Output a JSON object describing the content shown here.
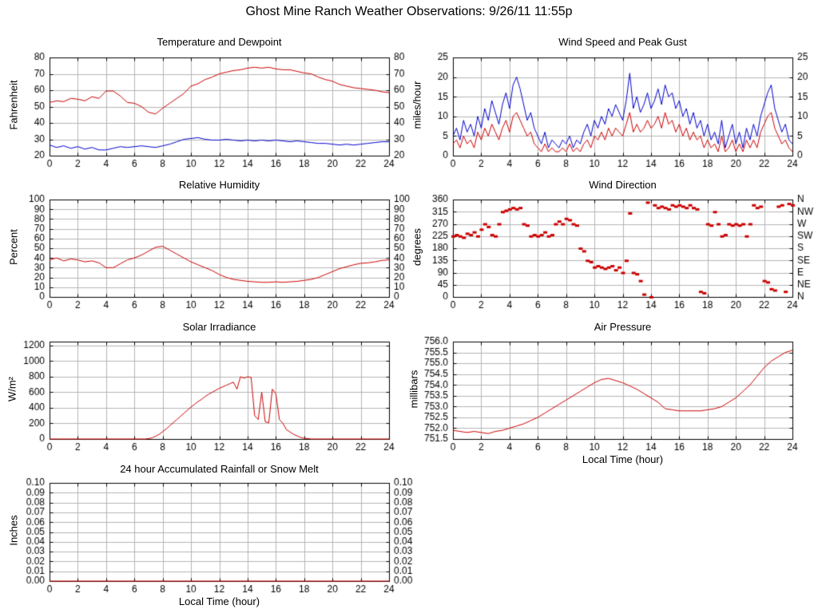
{
  "page": {
    "title": "Ghost Mine Ranch Weather Observations: 9/26/11 11:55p"
  },
  "chart_data": [
    {
      "id": "temperature-dewpoint",
      "type": "line",
      "title": "Temperature and Dewpoint",
      "ylabel": "Fahrenheit",
      "xlabel": "",
      "xlim": [
        0,
        24
      ],
      "ylim": [
        20,
        80
      ],
      "grid": true,
      "legend": "none",
      "xticks": [
        0,
        2,
        4,
        6,
        8,
        10,
        12,
        14,
        16,
        18,
        20,
        22,
        24
      ],
      "xtick_labels": [
        "0",
        "2",
        "4",
        "6",
        "8",
        "10",
        "12",
        "14",
        "16",
        "18",
        "20",
        "22",
        "24"
      ],
      "yticks": [
        20,
        30,
        40,
        50,
        60,
        70,
        80
      ],
      "ytick_labels_left": [
        "20",
        "30",
        "40",
        "50",
        "60",
        "70",
        "80"
      ],
      "ytick_labels_right": [
        "20",
        "30",
        "40",
        "50",
        "60",
        "70",
        "80"
      ],
      "series": [
        {
          "name": "Temperature",
          "color": "#cc0000",
          "x_start": 0,
          "x_step": 0.5,
          "values": [
            52.5,
            53.5,
            53,
            55,
            54.5,
            53.5,
            56,
            55,
            59.5,
            59.5,
            56.5,
            52.5,
            52,
            50,
            46.5,
            45.5,
            49,
            52,
            55,
            58,
            62.5,
            64,
            66.5,
            68,
            70,
            71,
            72,
            72.5,
            73.5,
            74,
            73.5,
            74,
            73,
            72.5,
            72.5,
            71.5,
            70.5,
            70,
            68,
            66.5,
            65.5,
            63.5,
            62.5,
            61.5,
            61,
            60.5,
            60,
            59,
            58.5
          ]
        },
        {
          "name": "Dewpoint",
          "color": "#0000cc",
          "x_start": 0,
          "x_step": 0.5,
          "values": [
            26.5,
            25,
            26,
            24.5,
            25.5,
            24,
            25,
            23.5,
            23.5,
            24.5,
            25.5,
            25,
            25.5,
            26,
            25.5,
            25,
            26,
            27,
            28.5,
            30,
            30.5,
            31,
            30,
            29.5,
            29.5,
            30,
            29.5,
            29,
            29.5,
            29,
            29.5,
            29,
            29.5,
            29,
            28.5,
            29,
            28.5,
            28,
            27.5,
            27.5,
            27,
            26.5,
            27,
            26.5,
            27,
            27.5,
            28,
            28.5,
            28.5
          ]
        }
      ]
    },
    {
      "id": "wind-speed-gust",
      "type": "line",
      "title": "Wind Speed and Peak Gust",
      "ylabel": "miles/hour",
      "xlabel": "",
      "xlim": [
        0,
        24
      ],
      "ylim": [
        0,
        25
      ],
      "grid": true,
      "legend": "none",
      "xticks": [
        0,
        2,
        4,
        6,
        8,
        10,
        12,
        14,
        16,
        18,
        20,
        22,
        24
      ],
      "xtick_labels": [
        "0",
        "2",
        "4",
        "6",
        "8",
        "10",
        "12",
        "14",
        "16",
        "18",
        "20",
        "22",
        "24"
      ],
      "yticks": [
        0,
        5,
        10,
        15,
        20,
        25
      ],
      "ytick_labels_left": [
        "0",
        "5",
        "10",
        "15",
        "20",
        "25"
      ],
      "ytick_labels_right": [
        "0",
        "5",
        "10",
        "15",
        "20",
        "25"
      ],
      "series": [
        {
          "name": "Peak Gust",
          "color": "#0000cc",
          "x_start": 0,
          "x_step": 0.25,
          "values": [
            5,
            7,
            4,
            9,
            6,
            8,
            5,
            10,
            7,
            12,
            9,
            14,
            11,
            8,
            13,
            16,
            12,
            18,
            20,
            17,
            13,
            9,
            11,
            7,
            5,
            3,
            6,
            2,
            4,
            3,
            2,
            4,
            3,
            5,
            2,
            4,
            3,
            6,
            8,
            5,
            9,
            7,
            10,
            8,
            12,
            10,
            13,
            11,
            9,
            14,
            21,
            12,
            15,
            11,
            13,
            16,
            12,
            14,
            17,
            13,
            18,
            15,
            16,
            12,
            14,
            10,
            12,
            8,
            11,
            7,
            9,
            5,
            8,
            4,
            6,
            3,
            9,
            2,
            5,
            8,
            3,
            6,
            2,
            7,
            4,
            8,
            5,
            10,
            13,
            16,
            18,
            12,
            9,
            6,
            8,
            4,
            3
          ]
        },
        {
          "name": "Wind Speed",
          "color": "#cc0000",
          "x_start": 0,
          "x_step": 0.25,
          "values": [
            3,
            4,
            2,
            5,
            3,
            4,
            2,
            6,
            4,
            7,
            5,
            8,
            6,
            4,
            7,
            9,
            6,
            10,
            11,
            9,
            7,
            5,
            6,
            3,
            2,
            1,
            3,
            1,
            2,
            1,
            1,
            2,
            1,
            3,
            1,
            2,
            1,
            3,
            4,
            2,
            5,
            4,
            6,
            4,
            7,
            5,
            7,
            6,
            5,
            8,
            11,
            6,
            8,
            6,
            7,
            9,
            7,
            8,
            10,
            7,
            11,
            8,
            9,
            6,
            8,
            5,
            7,
            4,
            6,
            4,
            5,
            2,
            4,
            2,
            3,
            1,
            5,
            1,
            2,
            4,
            1,
            3,
            1,
            4,
            2,
            4,
            2,
            6,
            8,
            10,
            11,
            7,
            5,
            3,
            4,
            2,
            1
          ]
        }
      ]
    },
    {
      "id": "relative-humidity",
      "type": "line",
      "title": "Relative Humidity",
      "ylabel": "Percent",
      "xlabel": "",
      "xlim": [
        0,
        24
      ],
      "ylim": [
        0,
        100
      ],
      "grid": true,
      "legend": "none",
      "xticks": [
        0,
        2,
        4,
        6,
        8,
        10,
        12,
        14,
        16,
        18,
        20,
        22,
        24
      ],
      "xtick_labels": [
        "0",
        "2",
        "4",
        "6",
        "8",
        "10",
        "12",
        "14",
        "16",
        "18",
        "20",
        "22",
        "24"
      ],
      "yticks": [
        0,
        10,
        20,
        30,
        40,
        50,
        60,
        70,
        80,
        90,
        100
      ],
      "ytick_labels_left": [
        "0",
        "10",
        "20",
        "30",
        "40",
        "50",
        "60",
        "70",
        "80",
        "90",
        "100"
      ],
      "ytick_labels_right": [
        "0",
        "10",
        "20",
        "30",
        "40",
        "50",
        "60",
        "70",
        "80",
        "90",
        "100"
      ],
      "series": [
        {
          "name": "Relative Humidity",
          "color": "#cc0000",
          "x_start": 0,
          "x_step": 0.5,
          "values": [
            38,
            40,
            37,
            39,
            38,
            36,
            37,
            35,
            30,
            30,
            34,
            38,
            40,
            43,
            47,
            51,
            52,
            48,
            44,
            40,
            36,
            33,
            30,
            27,
            23,
            20,
            18,
            17,
            16,
            15.5,
            15,
            15,
            15.5,
            15,
            15.5,
            16,
            17,
            18,
            20,
            23,
            26,
            29,
            31,
            33,
            34.5,
            35,
            36,
            37.5,
            38
          ]
        }
      ]
    },
    {
      "id": "wind-direction",
      "type": "scatter",
      "title": "Wind Direction",
      "ylabel": "degrees",
      "xlabel": "",
      "xlim": [
        0,
        24
      ],
      "ylim": [
        0,
        360
      ],
      "grid": true,
      "legend": "none",
      "xticks": [
        0,
        2,
        4,
        6,
        8,
        10,
        12,
        14,
        16,
        18,
        20,
        22,
        24
      ],
      "xtick_labels": [
        "0",
        "2",
        "4",
        "6",
        "8",
        "10",
        "12",
        "14",
        "16",
        "18",
        "20",
        "22",
        "24"
      ],
      "yticks": [
        0,
        45,
        90,
        135,
        180,
        225,
        270,
        315,
        360
      ],
      "ytick_labels_left": [
        "0",
        "45",
        "90",
        "135",
        "180",
        "225",
        "270",
        "315",
        "360"
      ],
      "ytick_labels_right": [
        "N",
        "NE",
        "E",
        "SE",
        "S",
        "SW",
        "W",
        "NW",
        "N"
      ],
      "series": [
        {
          "name": "Wind Direction",
          "color": "#cc0000",
          "style": "points",
          "x_start": 0,
          "x_step": 0.25,
          "values": [
            225,
            230,
            225,
            220,
            235,
            230,
            240,
            225,
            250,
            270,
            260,
            230,
            225,
            270,
            315,
            320,
            325,
            330,
            325,
            330,
            270,
            265,
            225,
            230,
            225,
            230,
            240,
            225,
            230,
            270,
            280,
            270,
            290,
            285,
            270,
            265,
            180,
            170,
            135,
            130,
            110,
            115,
            110,
            105,
            110,
            115,
            100,
            110,
            90,
            135,
            310,
            90,
            85,
            60,
            10,
            350,
            0,
            340,
            330,
            335,
            330,
            325,
            340,
            335,
            340,
            335,
            330,
            340,
            330,
            325,
            20,
            15,
            270,
            265,
            315,
            270,
            225,
            230,
            270,
            265,
            270,
            265,
            270,
            225,
            270,
            340,
            330,
            335,
            60,
            55,
            30,
            25,
            335,
            340,
            20,
            345,
            340
          ]
        }
      ]
    },
    {
      "id": "solar-irradiance",
      "type": "line",
      "title": "Solar Irradiance",
      "ylabel": "W/m²",
      "xlabel": "",
      "xlim": [
        0,
        24
      ],
      "ylim": [
        0,
        1250
      ],
      "grid": true,
      "legend": "none",
      "xticks": [
        0,
        2,
        4,
        6,
        8,
        10,
        12,
        14,
        16,
        18,
        20,
        22,
        24
      ],
      "xtick_labels": [
        "0",
        "2",
        "4",
        "6",
        "8",
        "10",
        "12",
        "14",
        "16",
        "18",
        "20",
        "22",
        "24"
      ],
      "yticks": [
        0,
        200,
        400,
        600,
        800,
        1000,
        1200
      ],
      "ytick_labels_left": [
        "0",
        "200",
        "400",
        "600",
        "800",
        "1000",
        "1200"
      ],
      "ytick_labels_right": null,
      "series": [
        {
          "name": "Solar Irradiance",
          "color": "#cc0000",
          "x_start": 0,
          "x_step": 0.25,
          "values": [
            0,
            0,
            0,
            0,
            0,
            0,
            0,
            0,
            0,
            0,
            0,
            0,
            0,
            0,
            0,
            0,
            0,
            0,
            0,
            0,
            0,
            0,
            0,
            0,
            0,
            0,
            0,
            0,
            5,
            15,
            35,
            60,
            95,
            130,
            170,
            210,
            250,
            290,
            330,
            370,
            410,
            445,
            480,
            510,
            545,
            575,
            600,
            625,
            650,
            670,
            690,
            710,
            730,
            640,
            800,
            780,
            800,
            790,
            300,
            250,
            600,
            220,
            210,
            640,
            580,
            250,
            200,
            120,
            90,
            60,
            40,
            20,
            10,
            5,
            0,
            0,
            0,
            0,
            0,
            0,
            0,
            0,
            0,
            0,
            0,
            0,
            0,
            0,
            0,
            0,
            0,
            0,
            0,
            0,
            0,
            0,
            0
          ]
        }
      ]
    },
    {
      "id": "air-pressure",
      "type": "line",
      "title": "Air Pressure",
      "ylabel": "millibars",
      "xlabel": "Local Time (hour)",
      "xlim": [
        0,
        24
      ],
      "ylim": [
        751.5,
        756.0
      ],
      "grid": true,
      "legend": "none",
      "xticks": [
        0,
        2,
        4,
        6,
        8,
        10,
        12,
        14,
        16,
        18,
        20,
        22,
        24
      ],
      "xtick_labels": [
        "0",
        "2",
        "4",
        "6",
        "8",
        "10",
        "12",
        "14",
        "16",
        "18",
        "20",
        "22",
        "24"
      ],
      "yticks": [
        751.5,
        752.0,
        752.5,
        753.0,
        753.5,
        754.0,
        754.5,
        755.0,
        755.5,
        756.0
      ],
      "ytick_labels_left": [
        "751.5",
        "752.0",
        "752.5",
        "753.0",
        "753.5",
        "754.0",
        "754.5",
        "755.0",
        "755.5",
        "756.0"
      ],
      "ytick_labels_right": null,
      "series": [
        {
          "name": "Air Pressure",
          "color": "#cc0000",
          "x_start": 0,
          "x_step": 0.5,
          "values": [
            751.9,
            751.85,
            751.8,
            751.85,
            751.8,
            751.75,
            751.85,
            751.9,
            752.0,
            752.1,
            752.2,
            752.35,
            752.5,
            752.7,
            752.9,
            753.1,
            753.3,
            753.5,
            753.7,
            753.9,
            754.1,
            754.25,
            754.3,
            754.2,
            754.1,
            753.95,
            753.8,
            753.6,
            753.4,
            753.2,
            752.9,
            752.85,
            752.8,
            752.8,
            752.8,
            752.8,
            752.85,
            752.9,
            753.0,
            753.2,
            753.4,
            753.7,
            754.0,
            754.4,
            754.8,
            755.1,
            755.3,
            755.5,
            755.6
          ]
        }
      ]
    },
    {
      "id": "rainfall",
      "type": "line",
      "title": "24 hour Accumulated Rainfall or Snow Melt",
      "ylabel": "Inches",
      "xlabel": "Local Time (hour)",
      "xlim": [
        0,
        24
      ],
      "ylim": [
        0,
        0.1
      ],
      "grid": true,
      "legend": "none",
      "xticks": [
        0,
        2,
        4,
        6,
        8,
        10,
        12,
        14,
        16,
        18,
        20,
        22,
        24
      ],
      "xtick_labels": [
        "0",
        "2",
        "4",
        "6",
        "8",
        "10",
        "12",
        "14",
        "16",
        "18",
        "20",
        "22",
        "24"
      ],
      "yticks": [
        0,
        0.01,
        0.02,
        0.03,
        0.04,
        0.05,
        0.06,
        0.07,
        0.08,
        0.09,
        0.1
      ],
      "ytick_labels_left": [
        "0.00",
        "0.01",
        "0.02",
        "0.03",
        "0.04",
        "0.05",
        "0.06",
        "0.07",
        "0.08",
        "0.09",
        "0.10"
      ],
      "ytick_labels_right": [
        "0.00",
        "0.01",
        "0.02",
        "0.03",
        "0.04",
        "0.05",
        "0.06",
        "0.07",
        "0.08",
        "0.09",
        "0.10"
      ],
      "series": [
        {
          "name": "Accumulated Rainfall",
          "color": "#cc0000",
          "x_start": 0,
          "x_step": 24,
          "values": [
            0,
            0
          ]
        }
      ]
    }
  ]
}
